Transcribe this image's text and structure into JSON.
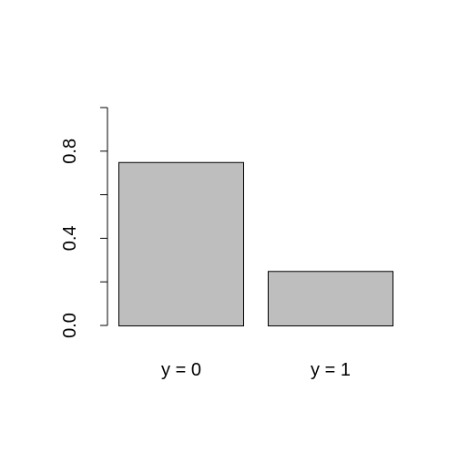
{
  "chart_data": {
    "type": "bar",
    "categories": [
      "y = 0",
      "y = 1"
    ],
    "values": [
      0.75,
      0.25
    ],
    "title": "",
    "xlabel": "",
    "ylabel": "",
    "ylim": [
      0,
      1
    ],
    "y_ticks": [
      0,
      0.2,
      0.4,
      0.6,
      0.8,
      1.0
    ],
    "y_tick_labels": [
      {
        "value": 0.0,
        "label": "0.0"
      },
      {
        "value": 0.4,
        "label": "0.4"
      },
      {
        "value": 0.8,
        "label": "0.8"
      }
    ],
    "grid": false,
    "bar_fill": "#bebebe",
    "bar_stroke": "#000000"
  }
}
